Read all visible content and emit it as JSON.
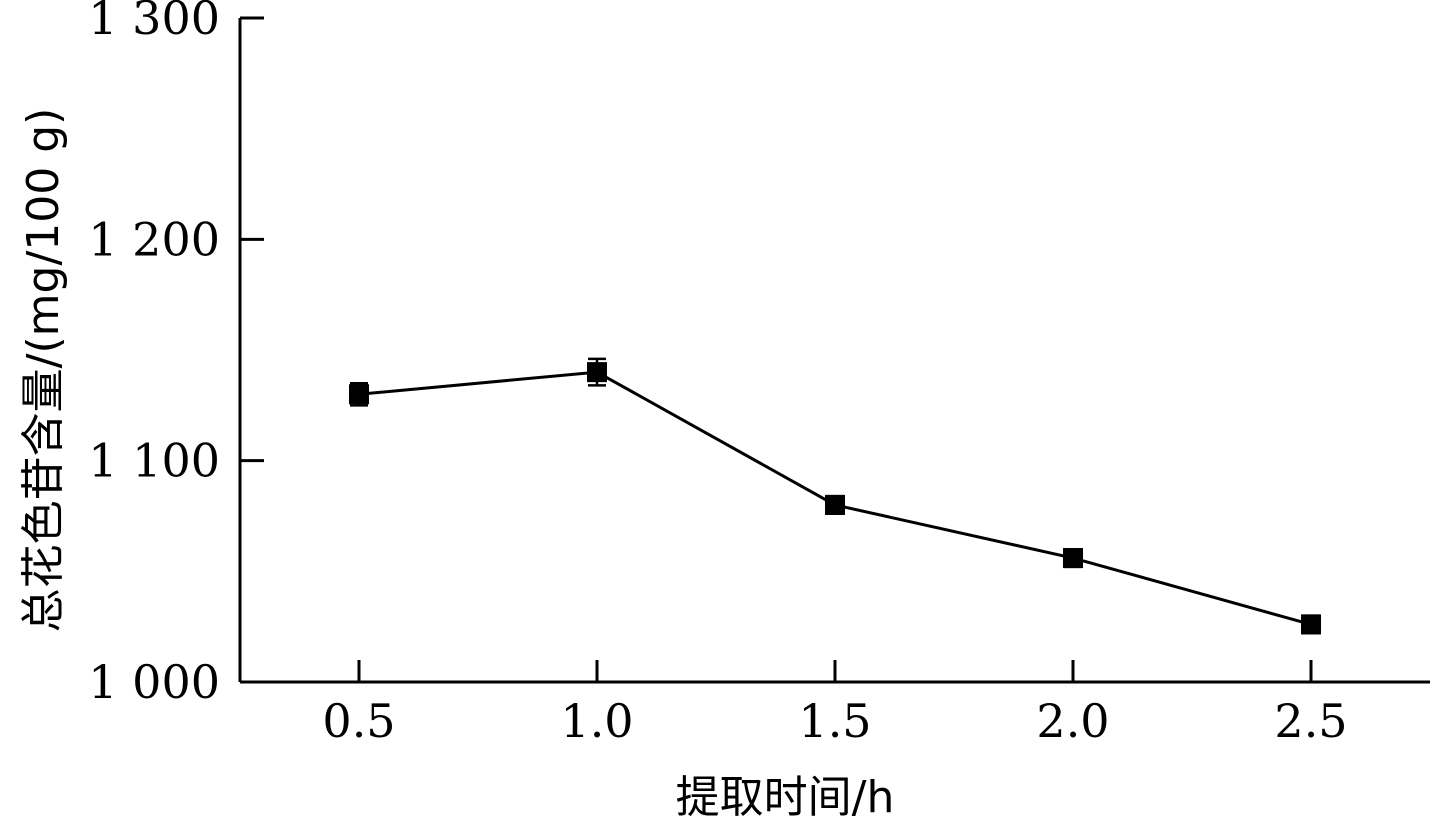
{
  "chart_data": {
    "type": "line",
    "xlabel": "提取时间/h",
    "ylabel": "总花色苷含量/(mg/100 g)",
    "xlim": [
      0.25,
      2.75
    ],
    "ylim": [
      1000,
      1300
    ],
    "x_ticks": [
      0.5,
      1.0,
      1.5,
      2.0,
      2.5
    ],
    "x_tick_labels": [
      "0.5",
      "1.0",
      "1.5",
      "2.0",
      "2.5"
    ],
    "y_ticks": [
      1000,
      1100,
      1200,
      1300
    ],
    "y_tick_labels": [
      "1 000",
      "1 100",
      "1 200",
      "1 300"
    ],
    "grid": false,
    "legend": "none",
    "series": [
      {
        "x": [
          0.5,
          1.0,
          1.5,
          2.0,
          2.5
        ],
        "y": [
          1130,
          1140,
          1080,
          1056,
          1026
        ],
        "error": [
          5,
          6,
          4,
          4,
          4
        ],
        "marker": "square",
        "color": "#000000"
      }
    ]
  }
}
